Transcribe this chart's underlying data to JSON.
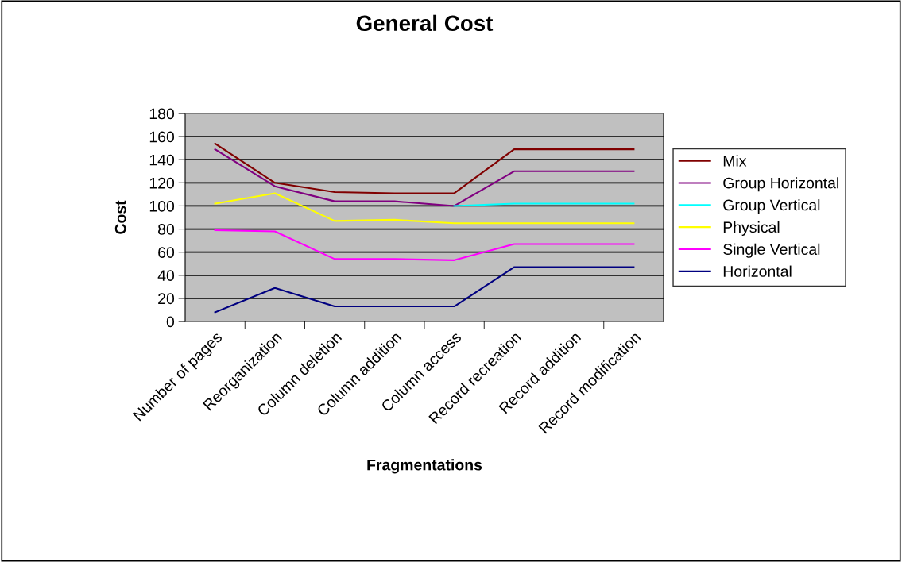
{
  "chart_data": {
    "type": "line",
    "title": "General Cost",
    "xlabel": "Fragmentations",
    "ylabel": "Cost",
    "categories": [
      "Number of pages",
      "Reorganization",
      "Column deletion",
      "Column addition",
      "Column access",
      "Record recreation",
      "Record addition",
      "Record modification"
    ],
    "series": [
      {
        "name": "Mix",
        "color": "#800000",
        "values": [
          154,
          120,
          112,
          111,
          111,
          149,
          149,
          149
        ]
      },
      {
        "name": "Group Horizontal",
        "color": "#800080",
        "values": [
          149,
          117,
          104,
          104,
          100,
          130,
          130,
          130
        ]
      },
      {
        "name": "Group Vertical",
        "color": "#00ffff",
        "values": [
          null,
          null,
          null,
          null,
          100,
          102,
          102,
          102
        ]
      },
      {
        "name": "Physical",
        "color": "#ffff00",
        "values": [
          102,
          111,
          87,
          88,
          85,
          85,
          85,
          85
        ]
      },
      {
        "name": "Single Vertical",
        "color": "#ff00ff",
        "values": [
          79,
          78,
          54,
          54,
          53,
          67,
          67,
          67
        ]
      },
      {
        "name": "Horizontal",
        "color": "#000080",
        "values": [
          8,
          29,
          13,
          13,
          13,
          47,
          47,
          47
        ]
      }
    ],
    "ylim": [
      0,
      180
    ],
    "yticks": [
      0,
      20,
      40,
      60,
      80,
      100,
      120,
      140,
      160,
      180
    ],
    "grid": "y",
    "legend": "right",
    "marker": "none",
    "line_style": "solid"
  }
}
